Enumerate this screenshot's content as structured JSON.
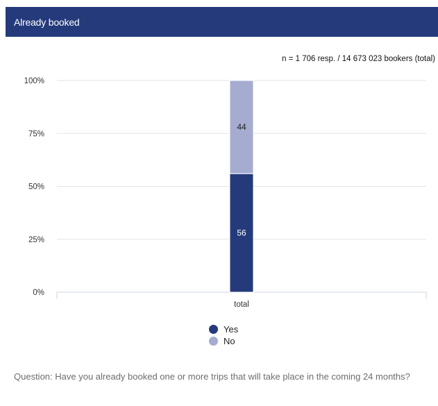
{
  "header": {
    "title": "Already booked"
  },
  "sample_note": "n = 1 706 resp. / 14 673 023 bookers (total)",
  "question": "Question: Have you already booked one or more trips that will take place in the coming 24 months?",
  "colors": {
    "header": "#243a7b",
    "yes": "#243a7b",
    "no": "#a5acd0"
  },
  "chart_data": {
    "type": "bar",
    "stacked": true,
    "categories": [
      "total"
    ],
    "series": [
      {
        "name": "Yes",
        "values": [
          56
        ],
        "color": "#243a7b"
      },
      {
        "name": "No",
        "values": [
          44
        ],
        "color": "#a5acd0"
      }
    ],
    "ylim": [
      0,
      100
    ],
    "yticks": [
      0,
      25,
      50,
      75,
      100
    ],
    "ytick_labels": [
      "0%",
      "25%",
      "50%",
      "75%",
      "100%"
    ],
    "data_labels": [
      "56",
      "44"
    ],
    "grid": true,
    "legend_position": "bottom-center"
  }
}
